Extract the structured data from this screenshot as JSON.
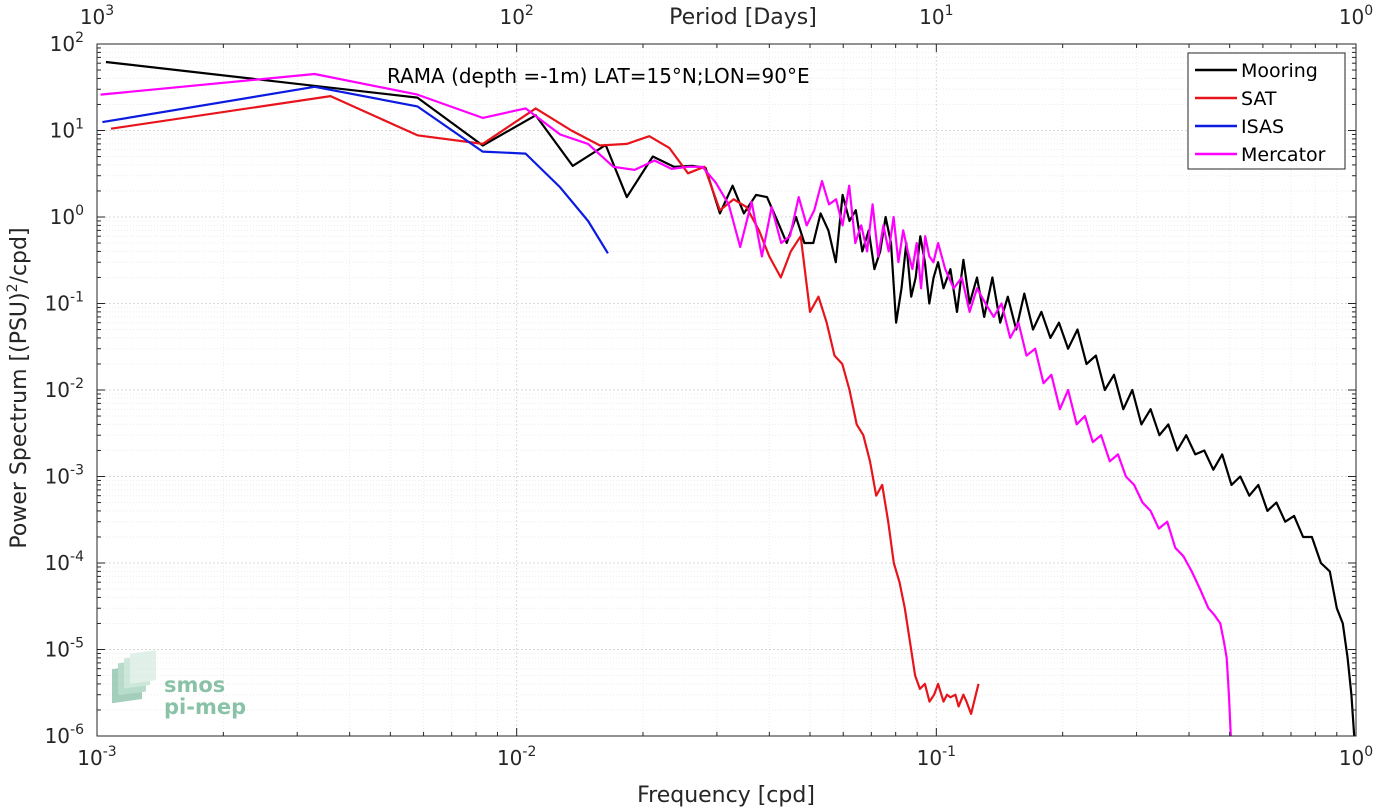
{
  "chart_data": {
    "type": "line",
    "title": "RAMA (depth =-1m) LAT=15°N;LON=90°E",
    "xlabel": "Frequency [cpd]",
    "ylabel": "Power Spectrum [(PSU)",
    "ylabel_sup": "2",
    "ylabel_tail": "/cpd]",
    "top_xlabel": "Period [Days]",
    "xscale": "log",
    "yscale": "log",
    "xlim": [
      0.001,
      1
    ],
    "ylim": [
      1e-06,
      100
    ],
    "grid": true,
    "legend_position": "top-right",
    "x_ticks": [
      {
        "value": 0.001,
        "base": "10",
        "exp": "-3"
      },
      {
        "value": 0.01,
        "base": "10",
        "exp": "-2"
      },
      {
        "value": 0.1,
        "base": "10",
        "exp": "-1"
      },
      {
        "value": 1,
        "base": "10",
        "exp": "0"
      }
    ],
    "y_ticks": [
      {
        "value": 100,
        "base": "10",
        "exp": "2"
      },
      {
        "value": 10,
        "base": "10",
        "exp": "1"
      },
      {
        "value": 1,
        "base": "10",
        "exp": "0"
      },
      {
        "value": 0.1,
        "base": "10",
        "exp": "-1"
      },
      {
        "value": 0.01,
        "base": "10",
        "exp": "-2"
      },
      {
        "value": 0.001,
        "base": "10",
        "exp": "-3"
      },
      {
        "value": 0.0001,
        "base": "10",
        "exp": "-4"
      },
      {
        "value": 1e-05,
        "base": "10",
        "exp": "-5"
      },
      {
        "value": 1e-06,
        "base": "10",
        "exp": "-6"
      }
    ],
    "top_ticks": [
      {
        "freq": 0.001,
        "base": "10",
        "exp": "3"
      },
      {
        "freq": 0.01,
        "base": "10",
        "exp": "2"
      },
      {
        "freq": 0.1,
        "base": "10",
        "exp": "1"
      },
      {
        "freq": 1,
        "base": "10",
        "exp": "0"
      }
    ],
    "series": [
      {
        "name": "Mooring",
        "color": "#000000",
        "x": [
          0.00105,
          0.0058,
          0.0083,
          0.0111,
          0.0136,
          0.0163,
          0.0183,
          0.0211,
          0.0237,
          0.0262,
          0.0282,
          0.0305,
          0.0327,
          0.0348,
          0.0372,
          0.0395,
          0.0418,
          0.044,
          0.0463,
          0.0485,
          0.0509,
          0.053,
          0.0553,
          0.0576,
          0.0598,
          0.0621,
          0.0643,
          0.0666,
          0.069,
          0.0712,
          0.0735,
          0.0757,
          0.078,
          0.0802,
          0.0826,
          0.0848,
          0.0871,
          0.0893,
          0.0916,
          0.0939,
          0.0962,
          0.0985,
          0.101,
          0.104,
          0.108,
          0.112,
          0.116,
          0.12,
          0.125,
          0.13,
          0.136,
          0.142,
          0.148,
          0.155,
          0.162,
          0.17,
          0.178,
          0.187,
          0.196,
          0.206,
          0.217,
          0.228,
          0.24,
          0.252,
          0.265,
          0.279,
          0.293,
          0.308,
          0.324,
          0.34,
          0.357,
          0.375,
          0.394,
          0.414,
          0.435,
          0.457,
          0.48,
          0.505,
          0.53,
          0.557,
          0.585,
          0.615,
          0.646,
          0.678,
          0.712,
          0.748,
          0.785,
          0.825,
          0.866,
          0.9,
          0.93,
          0.955,
          0.975,
          0.99
        ],
        "y": [
          62,
          24,
          6.7,
          15,
          3.9,
          6.8,
          1.7,
          5,
          3.8,
          3.9,
          3.7,
          1.1,
          2.3,
          1.1,
          1.8,
          1.7,
          0.9,
          0.5,
          1.0,
          0.5,
          0.5,
          1.1,
          0.7,
          0.3,
          1.8,
          0.9,
          1.2,
          0.4,
          0.7,
          0.25,
          0.4,
          1.0,
          0.5,
          0.06,
          0.15,
          0.5,
          0.12,
          0.2,
          0.6,
          0.3,
          0.1,
          0.2,
          0.3,
          0.15,
          0.25,
          0.08,
          0.32,
          0.1,
          0.2,
          0.07,
          0.2,
          0.06,
          0.12,
          0.05,
          0.13,
          0.05,
          0.08,
          0.04,
          0.06,
          0.03,
          0.05,
          0.02,
          0.025,
          0.01,
          0.015,
          0.006,
          0.01,
          0.004,
          0.006,
          0.003,
          0.004,
          0.002,
          0.003,
          0.0018,
          0.002,
          0.0012,
          0.0018,
          0.0008,
          0.001,
          0.0006,
          0.0008,
          0.0004,
          0.0005,
          0.0003,
          0.00035,
          0.0002,
          0.0002,
          0.0001,
          8e-05,
          3e-05,
          2e-05,
          8e-06,
          3e-06,
          1e-06
        ]
      },
      {
        "name": "SAT",
        "color": "#e8141c",
        "x": [
          0.00108,
          0.0036,
          0.0058,
          0.0083,
          0.0111,
          0.0135,
          0.0158,
          0.0183,
          0.0207,
          0.0231,
          0.0256,
          0.028,
          0.0305,
          0.0329,
          0.0353,
          0.0378,
          0.04,
          0.0426,
          0.045,
          0.0475,
          0.05,
          0.0524,
          0.0548,
          0.0572,
          0.0597,
          0.0621,
          0.0646,
          0.067,
          0.0695,
          0.0719,
          0.0743,
          0.0768,
          0.0792,
          0.0817,
          0.0841,
          0.0866,
          0.089,
          0.0914,
          0.0939,
          0.0963,
          0.0988,
          0.101,
          0.104,
          0.106,
          0.108,
          0.111,
          0.113,
          0.116,
          0.118,
          0.121,
          0.123,
          0.126
        ],
        "y": [
          10.5,
          25,
          8.8,
          7.0,
          18,
          10,
          6.7,
          7.0,
          8.6,
          6.3,
          3.2,
          3.8,
          1.2,
          1.6,
          1.3,
          0.7,
          0.35,
          0.2,
          0.4,
          0.6,
          0.08,
          0.12,
          0.06,
          0.025,
          0.02,
          0.01,
          0.004,
          0.003,
          0.0015,
          0.0006,
          0.0008,
          0.0003,
          0.0001,
          6e-05,
          3e-05,
          1.2e-05,
          5e-06,
          3.5e-06,
          4e-06,
          2.5e-06,
          3e-06,
          4e-06,
          2.5e-06,
          3e-06,
          2.8e-06,
          3e-06,
          2.2e-06,
          3e-06,
          2.5e-06,
          1.8e-06,
          2.5e-06,
          4e-06
        ]
      },
      {
        "name": "ISAS",
        "color": "#0b1be0",
        "x": [
          0.00103,
          0.0033,
          0.0058,
          0.0083,
          0.0105,
          0.0127,
          0.0148,
          0.0165
        ],
        "y": [
          12.5,
          32,
          19,
          5.7,
          5.4,
          2.2,
          0.9,
          0.38
        ]
      },
      {
        "name": "Mercator",
        "color": "#ff00ff",
        "x": [
          0.00102,
          0.0033,
          0.0058,
          0.0083,
          0.0105,
          0.0127,
          0.0148,
          0.017,
          0.0191,
          0.0213,
          0.0234,
          0.0256,
          0.0277,
          0.0298,
          0.032,
          0.0341,
          0.0363,
          0.0384,
          0.0405,
          0.0427,
          0.0448,
          0.047,
          0.0491,
          0.0512,
          0.0534,
          0.0555,
          0.0577,
          0.0598,
          0.062,
          0.0641,
          0.0662,
          0.0684,
          0.0705,
          0.0727,
          0.0748,
          0.077,
          0.0791,
          0.0812,
          0.0834,
          0.0855,
          0.0877,
          0.0898,
          0.092,
          0.0941,
          0.0962,
          0.0984,
          0.101,
          0.105,
          0.11,
          0.115,
          0.12,
          0.125,
          0.131,
          0.137,
          0.143,
          0.15,
          0.157,
          0.164,
          0.172,
          0.18,
          0.188,
          0.197,
          0.206,
          0.216,
          0.226,
          0.236,
          0.247,
          0.259,
          0.271,
          0.283,
          0.296,
          0.31,
          0.324,
          0.339,
          0.355,
          0.371,
          0.388,
          0.406,
          0.425,
          0.445,
          0.46,
          0.475,
          0.485,
          0.492,
          0.498,
          0.503
        ],
        "y": [
          26,
          45,
          26,
          14,
          18,
          9,
          7,
          3.8,
          3.5,
          4.5,
          3.6,
          3.8,
          3.8,
          2.5,
          1.4,
          0.45,
          1.5,
          0.35,
          1.3,
          0.5,
          0.6,
          1.7,
          0.8,
          1.2,
          2.6,
          1.4,
          1.6,
          0.8,
          2.3,
          0.5,
          0.8,
          0.4,
          1.4,
          0.35,
          0.8,
          0.4,
          1.0,
          0.3,
          0.7,
          0.4,
          0.25,
          0.5,
          0.15,
          0.6,
          0.35,
          0.3,
          0.5,
          0.25,
          0.15,
          0.2,
          0.08,
          0.15,
          0.1,
          0.07,
          0.1,
          0.04,
          0.06,
          0.025,
          0.03,
          0.012,
          0.015,
          0.006,
          0.01,
          0.004,
          0.005,
          0.0025,
          0.003,
          0.0015,
          0.0018,
          0.001,
          0.0008,
          0.0005,
          0.0004,
          0.00025,
          0.0003,
          0.00015,
          0.00012,
          8e-05,
          5e-05,
          3e-05,
          2.5e-05,
          2e-05,
          1.2e-05,
          8e-06,
          3e-06,
          1e-06
        ]
      }
    ]
  },
  "watermark": {
    "line1": "smos",
    "line2": "pi-mep",
    "color": "#3d9a6e"
  }
}
